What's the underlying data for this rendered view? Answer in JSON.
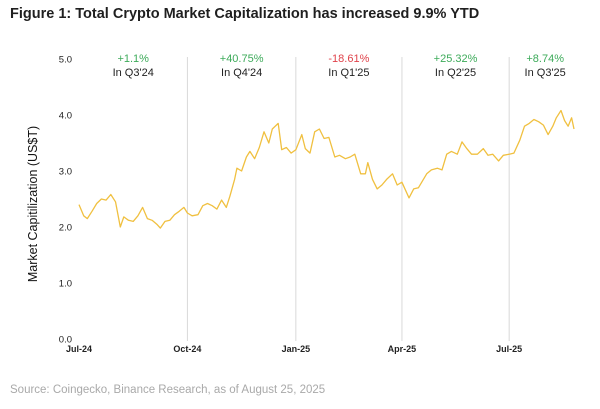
{
  "title": "Figure 1: Total Crypto Market Capitalization has increased 9.9% YTD",
  "source": "Source: Coingecko, Binance Research, as of August 25, 2025",
  "colors": {
    "line": "#f0c040",
    "positive": "#3dab5a",
    "negative": "#e0434b",
    "separator": "#d9d9d9"
  },
  "chart_data": {
    "type": "line",
    "title": "Figure 1: Total Crypto Market Capitalization has increased 9.9% YTD",
    "xlabel": "",
    "ylabel": "Market Capitilization (US$T)",
    "ylim": [
      0,
      5
    ],
    "y_ticks": [
      "0.0",
      "1.0",
      "2.0",
      "3.0",
      "4.0",
      "5.0"
    ],
    "x_ticks": [
      "Jul-24",
      "Oct-24",
      "Jan-25",
      "Apr-25",
      "Jul-25"
    ],
    "grid": false,
    "x_start": "2024-07-01",
    "x_end": "2025-08-25",
    "quarter_separators": [
      "2024-10-01",
      "2025-01-01",
      "2025-04-01",
      "2025-07-01"
    ],
    "annotations": [
      {
        "value": "+1.1%",
        "label": "In Q3'24",
        "direction": "positive"
      },
      {
        "value": "+40.75%",
        "label": "In Q4'24",
        "direction": "positive"
      },
      {
        "value": "-18.61%",
        "label": "In Q1'25",
        "direction": "negative"
      },
      {
        "value": "+25.32%",
        "label": "In Q2'25",
        "direction": "positive"
      },
      {
        "value": "+8.74%",
        "label": "In Q3'25",
        "direction": "positive"
      }
    ],
    "series": [
      {
        "values": [
          [
            "2024-07-01",
            2.4
          ],
          [
            "2024-07-05",
            2.2
          ],
          [
            "2024-07-08",
            2.15
          ],
          [
            "2024-07-12",
            2.28
          ],
          [
            "2024-07-16",
            2.42
          ],
          [
            "2024-07-20",
            2.5
          ],
          [
            "2024-07-24",
            2.48
          ],
          [
            "2024-07-28",
            2.58
          ],
          [
            "2024-08-01",
            2.45
          ],
          [
            "2024-08-05",
            2.0
          ],
          [
            "2024-08-08",
            2.18
          ],
          [
            "2024-08-12",
            2.12
          ],
          [
            "2024-08-16",
            2.1
          ],
          [
            "2024-08-20",
            2.2
          ],
          [
            "2024-08-24",
            2.35
          ],
          [
            "2024-08-28",
            2.15
          ],
          [
            "2024-09-01",
            2.12
          ],
          [
            "2024-09-05",
            2.05
          ],
          [
            "2024-09-08",
            1.98
          ],
          [
            "2024-09-12",
            2.1
          ],
          [
            "2024-09-16",
            2.12
          ],
          [
            "2024-09-20",
            2.22
          ],
          [
            "2024-09-24",
            2.28
          ],
          [
            "2024-09-28",
            2.35
          ],
          [
            "2024-10-01",
            2.25
          ],
          [
            "2024-10-05",
            2.2
          ],
          [
            "2024-10-10",
            2.22
          ],
          [
            "2024-10-14",
            2.38
          ],
          [
            "2024-10-18",
            2.42
          ],
          [
            "2024-10-22",
            2.38
          ],
          [
            "2024-10-26",
            2.32
          ],
          [
            "2024-10-30",
            2.48
          ],
          [
            "2024-11-03",
            2.35
          ],
          [
            "2024-11-06",
            2.55
          ],
          [
            "2024-11-10",
            2.85
          ],
          [
            "2024-11-12",
            3.05
          ],
          [
            "2024-11-16",
            3.0
          ],
          [
            "2024-11-20",
            3.25
          ],
          [
            "2024-11-23",
            3.35
          ],
          [
            "2024-11-27",
            3.22
          ],
          [
            "2024-12-01",
            3.42
          ],
          [
            "2024-12-05",
            3.7
          ],
          [
            "2024-12-09",
            3.5
          ],
          [
            "2024-12-12",
            3.75
          ],
          [
            "2024-12-17",
            3.85
          ],
          [
            "2024-12-20",
            3.38
          ],
          [
            "2024-12-24",
            3.42
          ],
          [
            "2024-12-28",
            3.32
          ],
          [
            "2025-01-01",
            3.38
          ],
          [
            "2025-01-06",
            3.65
          ],
          [
            "2025-01-09",
            3.4
          ],
          [
            "2025-01-13",
            3.32
          ],
          [
            "2025-01-17",
            3.7
          ],
          [
            "2025-01-21",
            3.75
          ],
          [
            "2025-01-25",
            3.58
          ],
          [
            "2025-01-29",
            3.6
          ],
          [
            "2025-02-03",
            3.25
          ],
          [
            "2025-02-07",
            3.28
          ],
          [
            "2025-02-12",
            3.22
          ],
          [
            "2025-02-16",
            3.25
          ],
          [
            "2025-02-20",
            3.3
          ],
          [
            "2025-02-25",
            2.95
          ],
          [
            "2025-03-01",
            2.95
          ],
          [
            "2025-03-03",
            3.15
          ],
          [
            "2025-03-07",
            2.85
          ],
          [
            "2025-03-11",
            2.68
          ],
          [
            "2025-03-15",
            2.75
          ],
          [
            "2025-03-19",
            2.85
          ],
          [
            "2025-03-24",
            2.95
          ],
          [
            "2025-03-28",
            2.75
          ],
          [
            "2025-04-01",
            2.8
          ],
          [
            "2025-04-07",
            2.52
          ],
          [
            "2025-04-11",
            2.68
          ],
          [
            "2025-04-15",
            2.7
          ],
          [
            "2025-04-22",
            2.95
          ],
          [
            "2025-04-26",
            3.02
          ],
          [
            "2025-05-01",
            3.05
          ],
          [
            "2025-05-05",
            3.02
          ],
          [
            "2025-05-09",
            3.3
          ],
          [
            "2025-05-13",
            3.35
          ],
          [
            "2025-05-18",
            3.3
          ],
          [
            "2025-05-22",
            3.52
          ],
          [
            "2025-05-26",
            3.4
          ],
          [
            "2025-05-30",
            3.3
          ],
          [
            "2025-06-04",
            3.3
          ],
          [
            "2025-06-09",
            3.4
          ],
          [
            "2025-06-13",
            3.28
          ],
          [
            "2025-06-17",
            3.3
          ],
          [
            "2025-06-22",
            3.18
          ],
          [
            "2025-06-26",
            3.28
          ],
          [
            "2025-07-01",
            3.3
          ],
          [
            "2025-07-05",
            3.32
          ],
          [
            "2025-07-10",
            3.55
          ],
          [
            "2025-07-14",
            3.8
          ],
          [
            "2025-07-18",
            3.85
          ],
          [
            "2025-07-22",
            3.92
          ],
          [
            "2025-07-26",
            3.88
          ],
          [
            "2025-07-30",
            3.82
          ],
          [
            "2025-08-03",
            3.65
          ],
          [
            "2025-08-07",
            3.8
          ],
          [
            "2025-08-10",
            3.95
          ],
          [
            "2025-08-14",
            4.08
          ],
          [
            "2025-08-17",
            3.9
          ],
          [
            "2025-08-20",
            3.8
          ],
          [
            "2025-08-23",
            3.95
          ],
          [
            "2025-08-25",
            3.75
          ]
        ]
      }
    ]
  }
}
